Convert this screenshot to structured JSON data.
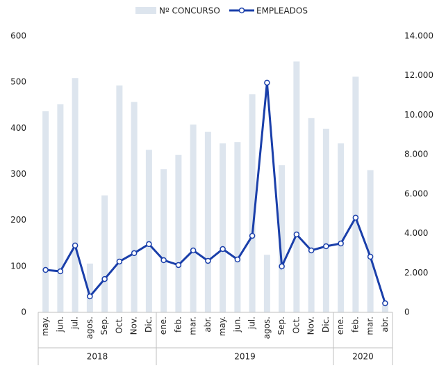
{
  "chart_data": {
    "type": "bar-line",
    "categories": [
      "may.",
      "jun.",
      "jul.",
      "agos.",
      "Sep.",
      "Oct.",
      "Nov.",
      "Dic.",
      "ene.",
      "feb.",
      "mar.",
      "abr.",
      "may.",
      "jun.",
      "jul.",
      "agos.",
      "Sep.",
      "Oct.",
      "Nov.",
      "Dic.",
      "ene.",
      "feb.",
      "mar.",
      "abr."
    ],
    "groups": [
      {
        "label": "2018",
        "count": 8
      },
      {
        "label": "2019",
        "count": 12
      },
      {
        "label": "2020",
        "count": 4
      }
    ],
    "series": [
      {
        "name": "Nº CONCURSO",
        "color": "#dde5ee",
        "kind": "bar",
        "axis": "y",
        "values": [
          437,
          452,
          509,
          106,
          254,
          493,
          457,
          353,
          311,
          342,
          408,
          392,
          367,
          370,
          474,
          125,
          320,
          545,
          422,
          399,
          367,
          512,
          309,
          15
        ]
      },
      {
        "name": "EMPLEADOS",
        "color": "#1a3faa",
        "kind": "line",
        "axis": "y2",
        "values": [
          2150,
          2080,
          3390,
          810,
          1690,
          2575,
          3000,
          3460,
          2645,
          2400,
          3140,
          2610,
          3210,
          2680,
          3880,
          11640,
          2330,
          3950,
          3140,
          3350,
          3490,
          4800,
          2820,
          460
        ]
      }
    ],
    "ylim": [
      0,
      600
    ],
    "yticks": [
      0,
      100,
      200,
      300,
      400,
      500,
      600
    ],
    "y2lim": [
      0,
      14000
    ],
    "y2ticks": [
      0,
      {
        "value": 2000,
        "label": "2.000"
      },
      {
        "value": 4000,
        "label": "4.000"
      },
      {
        "value": 6000,
        "label": "6.000"
      },
      {
        "value": 8000,
        "label": "8.000"
      },
      {
        "value": 10000,
        "label": "10.000"
      },
      {
        "value": 12000,
        "label": "12.000"
      },
      {
        "value": 14000,
        "label": "14.000"
      }
    ],
    "legend": "top"
  }
}
